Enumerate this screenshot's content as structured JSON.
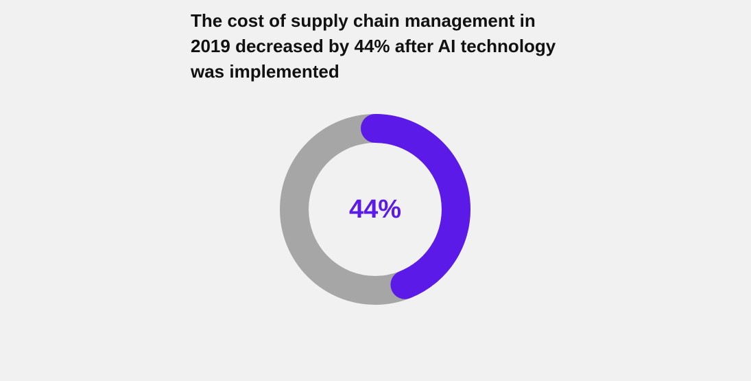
{
  "chart_data": {
    "type": "donut",
    "title": "The cost of supply chain management in 2019 decreased by 44% after AI technology was implemented",
    "values": [
      44
    ],
    "value_labels": [
      "44%"
    ],
    "color": "#5b1ae8",
    "track_color": "#a6a6a6"
  }
}
